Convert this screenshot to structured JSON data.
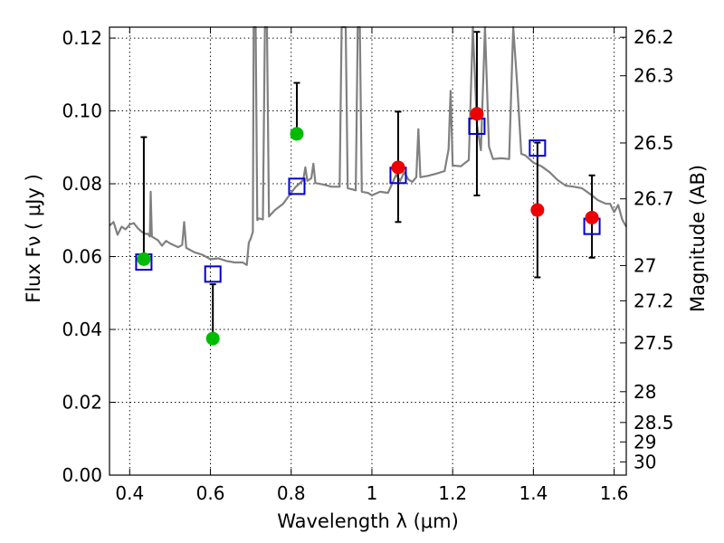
{
  "chart_data": {
    "type": "scatter",
    "title": "",
    "xlabel": "Wavelength  λ (μm)",
    "ylabel": "Flux  Fν ( μJy )",
    "y2label": "Magnitude (AB)",
    "xlim": [
      0.35,
      1.63
    ],
    "ylim": [
      0.0,
      0.123
    ],
    "grid": true,
    "x_ticks": [
      0.4,
      0.6,
      0.8,
      1.0,
      1.2,
      1.4,
      1.6
    ],
    "x_tick_labels": [
      "0.4",
      "0.6",
      "0.8",
      "1",
      "1.2",
      "1.4",
      "1.6"
    ],
    "y_ticks": [
      0.0,
      0.02,
      0.04,
      0.06,
      0.08,
      0.1,
      0.12
    ],
    "y_tick_labels": [
      "0.00",
      "0.02",
      "0.04",
      "0.06",
      "0.08",
      "0.10",
      "0.12"
    ],
    "y2_ticks": [
      26.2,
      26.3,
      26.5,
      26.7,
      27,
      27.2,
      27.5,
      28,
      28.5,
      29,
      30
    ],
    "y2_tick_labels": [
      "26.2",
      "26.3",
      "26.5",
      "26.7",
      "27",
      "27.2",
      "27.5",
      "28",
      "28.5",
      "29",
      "30"
    ],
    "colors": {
      "spectrum": "#808080",
      "model_square": "#0000cc",
      "green": "#00bb00",
      "red": "#ee0000",
      "errorbar": "#000000"
    },
    "series": [
      {
        "marker": "circle-green",
        "points": [
          {
            "x": 0.435,
            "y": 0.0593,
            "err_low": 0.0593,
            "err_high": 0.0928
          },
          {
            "x": 0.606,
            "y": 0.0375,
            "err_low": 0.0375,
            "err_high": 0.0524
          },
          {
            "x": 0.814,
            "y": 0.0937,
            "err_low": 0.0937,
            "err_high": 0.1077
          }
        ]
      },
      {
        "marker": "circle-red",
        "points": [
          {
            "x": 1.065,
            "y": 0.0845,
            "err_low": 0.0695,
            "err_high": 0.0998
          },
          {
            "x": 1.26,
            "y": 0.0992,
            "err_low": 0.0768,
            "err_high": 0.1217
          },
          {
            "x": 1.41,
            "y": 0.0728,
            "err_low": 0.0543,
            "err_high": 0.0913
          },
          {
            "x": 1.545,
            "y": 0.0707,
            "err_low": 0.0597,
            "err_high": 0.0823
          }
        ]
      },
      {
        "marker": "square-blue",
        "points": [
          {
            "x": 0.435,
            "y": 0.0585
          },
          {
            "x": 0.606,
            "y": 0.0552
          },
          {
            "x": 0.814,
            "y": 0.0793
          },
          {
            "x": 1.065,
            "y": 0.0823
          },
          {
            "x": 1.26,
            "y": 0.0958
          },
          {
            "x": 1.41,
            "y": 0.0898
          },
          {
            "x": 1.545,
            "y": 0.0683
          }
        ]
      },
      {
        "marker": "line-spectrum",
        "points": [
          [
            0.35,
            0.0685
          ],
          [
            0.36,
            0.0695
          ],
          [
            0.37,
            0.066
          ],
          [
            0.38,
            0.0682
          ],
          [
            0.39,
            0.0675
          ],
          [
            0.4,
            0.0688
          ],
          [
            0.41,
            0.0692
          ],
          [
            0.42,
            0.0678
          ],
          [
            0.43,
            0.0668
          ],
          [
            0.44,
            0.0662
          ],
          [
            0.445,
            0.0663
          ],
          [
            0.45,
            0.0655
          ],
          [
            0.452,
            0.0778
          ],
          [
            0.455,
            0.0655
          ],
          [
            0.47,
            0.0645
          ],
          [
            0.48,
            0.063
          ],
          [
            0.49,
            0.0643
          ],
          [
            0.5,
            0.0636
          ],
          [
            0.52,
            0.0626
          ],
          [
            0.53,
            0.0632
          ],
          [
            0.535,
            0.0695
          ],
          [
            0.54,
            0.0624
          ],
          [
            0.56,
            0.0612
          ],
          [
            0.58,
            0.0605
          ],
          [
            0.6,
            0.0593
          ],
          [
            0.62,
            0.0595
          ],
          [
            0.64,
            0.0588
          ],
          [
            0.66,
            0.0584
          ],
          [
            0.68,
            0.0584
          ],
          [
            0.69,
            0.0577
          ],
          [
            0.695,
            0.0638
          ],
          [
            0.7,
            0.065
          ],
          [
            0.705,
            0.0668
          ],
          [
            0.707,
            0.123
          ],
          [
            0.712,
            0.123
          ],
          [
            0.716,
            0.07
          ],
          [
            0.72,
            0.0705
          ],
          [
            0.73,
            0.0702
          ],
          [
            0.735,
            0.123
          ],
          [
            0.74,
            0.123
          ],
          [
            0.745,
            0.071
          ],
          [
            0.76,
            0.0728
          ],
          [
            0.78,
            0.0745
          ],
          [
            0.8,
            0.0775
          ],
          [
            0.81,
            0.079
          ],
          [
            0.82,
            0.08
          ],
          [
            0.83,
            0.081
          ],
          [
            0.835,
            0.0845
          ],
          [
            0.84,
            0.0808
          ],
          [
            0.85,
            0.0815
          ],
          [
            0.855,
            0.0855
          ],
          [
            0.86,
            0.0802
          ],
          [
            0.88,
            0.0798
          ],
          [
            0.9,
            0.0792
          ],
          [
            0.92,
            0.0792
          ],
          [
            0.925,
            0.123
          ],
          [
            0.935,
            0.123
          ],
          [
            0.94,
            0.0788
          ],
          [
            0.95,
            0.0785
          ],
          [
            0.96,
            0.0782
          ],
          [
            0.965,
            0.123
          ],
          [
            0.97,
            0.123
          ],
          [
            0.975,
            0.0778
          ],
          [
            0.99,
            0.0775
          ],
          [
            1.0,
            0.0768
          ],
          [
            1.02,
            0.0778
          ],
          [
            1.04,
            0.0775
          ],
          [
            1.06,
            0.0825
          ],
          [
            1.07,
            0.0808
          ],
          [
            1.08,
            0.0832
          ],
          [
            1.09,
            0.0812
          ],
          [
            1.1,
            0.0805
          ],
          [
            1.11,
            0.0818
          ],
          [
            1.115,
            0.095
          ],
          [
            1.12,
            0.0818
          ],
          [
            1.14,
            0.0822
          ],
          [
            1.16,
            0.0828
          ],
          [
            1.18,
            0.0835
          ],
          [
            1.19,
            0.0895
          ],
          [
            1.195,
            0.1055
          ],
          [
            1.2,
            0.085
          ],
          [
            1.22,
            0.0848
          ],
          [
            1.24,
            0.0865
          ],
          [
            1.25,
            0.123
          ],
          [
            1.26,
            0.0965
          ],
          [
            1.27,
            0.0892
          ],
          [
            1.28,
            0.123
          ],
          [
            1.29,
            0.0902
          ],
          [
            1.3,
            0.0868
          ],
          [
            1.32,
            0.087
          ],
          [
            1.34,
            0.0868
          ],
          [
            1.35,
            0.123
          ],
          [
            1.36,
            0.1068
          ],
          [
            1.37,
            0.0882
          ],
          [
            1.38,
            0.0878
          ],
          [
            1.4,
            0.0858
          ],
          [
            1.42,
            0.0848
          ],
          [
            1.44,
            0.0832
          ],
          [
            1.46,
            0.081
          ],
          [
            1.48,
            0.0795
          ],
          [
            1.5,
            0.0792
          ],
          [
            1.52,
            0.0788
          ],
          [
            1.54,
            0.0772
          ],
          [
            1.56,
            0.0755
          ],
          [
            1.58,
            0.0745
          ],
          [
            1.59,
            0.0745
          ],
          [
            1.6,
            0.0722
          ],
          [
            1.61,
            0.0742
          ],
          [
            1.62,
            0.0702
          ],
          [
            1.63,
            0.0682
          ]
        ]
      }
    ]
  }
}
